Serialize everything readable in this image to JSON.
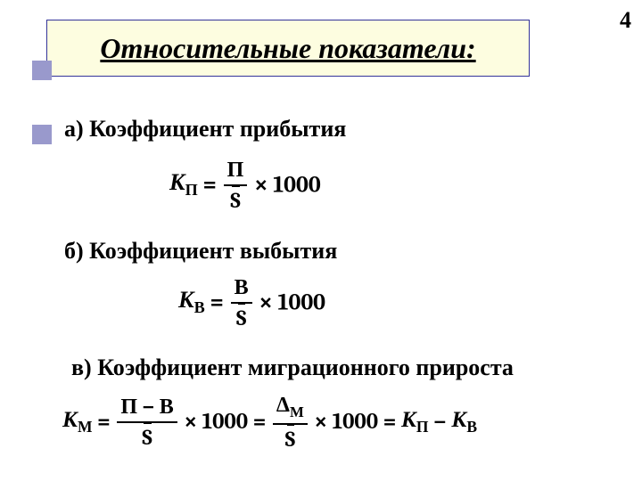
{
  "page_number": "4",
  "title": "Относительные показатели:",
  "colors": {
    "title_bg": "#fdfde0",
    "title_border": "#333399",
    "marker": "#9999cc",
    "text": "#000000",
    "background": "#ffffff"
  },
  "typography": {
    "title_fontsize": 32,
    "title_italic": true,
    "title_bold": true,
    "title_underline": true,
    "section_fontsize": 26,
    "section_bold": true,
    "formula_fontsize": 26,
    "formula_font": "Cambria"
  },
  "sections": {
    "a": {
      "label": "а) Коэффициент прибытия"
    },
    "b": {
      "label": "б) Коэффициент выбытия"
    },
    "v": {
      "label": "в) Коэффициент миграционного прироста"
    }
  },
  "formulas": {
    "a": {
      "lhs_var": "К",
      "lhs_sub": "П",
      "eq": "=",
      "num": "П",
      "den": "S",
      "den_has_bar": true,
      "mult": "×",
      "const": "1000"
    },
    "b": {
      "lhs_var": "К",
      "lhs_sub": "В",
      "eq": "=",
      "num": "В",
      "den": "S",
      "den_has_bar": true,
      "mult": "×",
      "const": "1000"
    },
    "v": {
      "lhs_var": "К",
      "lhs_sub": "М",
      "eq": "=",
      "num1": "П − В",
      "den1": "S",
      "den1_has_bar": true,
      "mult": "×",
      "const": "1000",
      "eq2": "=",
      "num2_prefix": "Δ",
      "num2_sub": "М",
      "den2": "S",
      "den2_has_bar": true,
      "eq3": "=",
      "rhs_t1_var": "К",
      "rhs_t1_sub": "П",
      "minus": "−",
      "rhs_t2_var": "К",
      "rhs_t2_sub": "В"
    }
  }
}
